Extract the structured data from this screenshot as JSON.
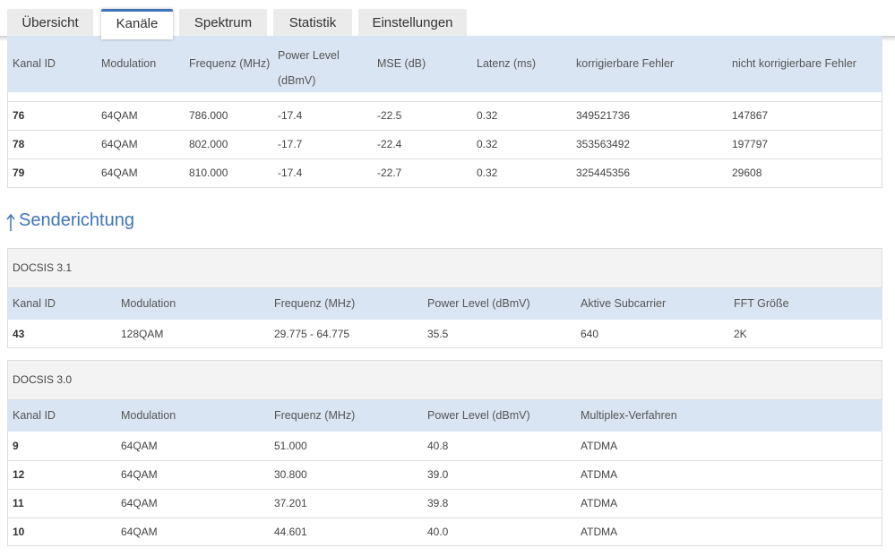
{
  "tabs": {
    "items": [
      "Übersicht",
      "Kanäle",
      "Spektrum",
      "Statistik",
      "Einstellungen"
    ],
    "active": 1
  },
  "downstream": {
    "header": [
      "Kanal ID",
      "Modulation",
      "Frequenz (MHz)",
      "Power Level (dBmV)",
      "MSE (dB)",
      "Latenz (ms)",
      "korrigierbare Fehler",
      "nicht korrigierbare Fehler"
    ],
    "rows": [
      [
        "76",
        "64QAM",
        "786.000",
        "-17.4",
        "-22.5",
        "0.32",
        "349521736",
        "147867"
      ],
      [
        "78",
        "64QAM",
        "802.000",
        "-17.7",
        "-22.4",
        "0.32",
        "353563492",
        "197797"
      ],
      [
        "79",
        "64QAM",
        "810.000",
        "-17.4",
        "-22.7",
        "0.32",
        "325445356",
        "29608"
      ]
    ]
  },
  "upstream": {
    "title": "Senderichtung",
    "tables": [
      {
        "title": "DOCSIS 3.1",
        "header": [
          "Kanal ID",
          "Modulation",
          "Frequenz (MHz)",
          "Power Level (dBmV)",
          "Aktive Subcarrier",
          "FFT Größe"
        ],
        "rows": [
          [
            "43",
            "128QAM",
            "29.775 - 64.775",
            "35.5",
            "640",
            "2K"
          ]
        ]
      },
      {
        "title": "DOCSIS 3.0",
        "header": [
          "Kanal ID",
          "Modulation",
          "Frequenz (MHz)",
          "Power Level (dBmV)",
          "Multiplex-Verfahren"
        ],
        "rows": [
          [
            "9",
            "64QAM",
            "51.000",
            "40.8",
            "ATDMA"
          ],
          [
            "12",
            "64QAM",
            "30.800",
            "39.0",
            "ATDMA"
          ],
          [
            "11",
            "64QAM",
            "37.201",
            "39.8",
            "ATDMA"
          ],
          [
            "10",
            "64QAM",
            "44.601",
            "40.0",
            "ATDMA"
          ]
        ]
      }
    ]
  }
}
